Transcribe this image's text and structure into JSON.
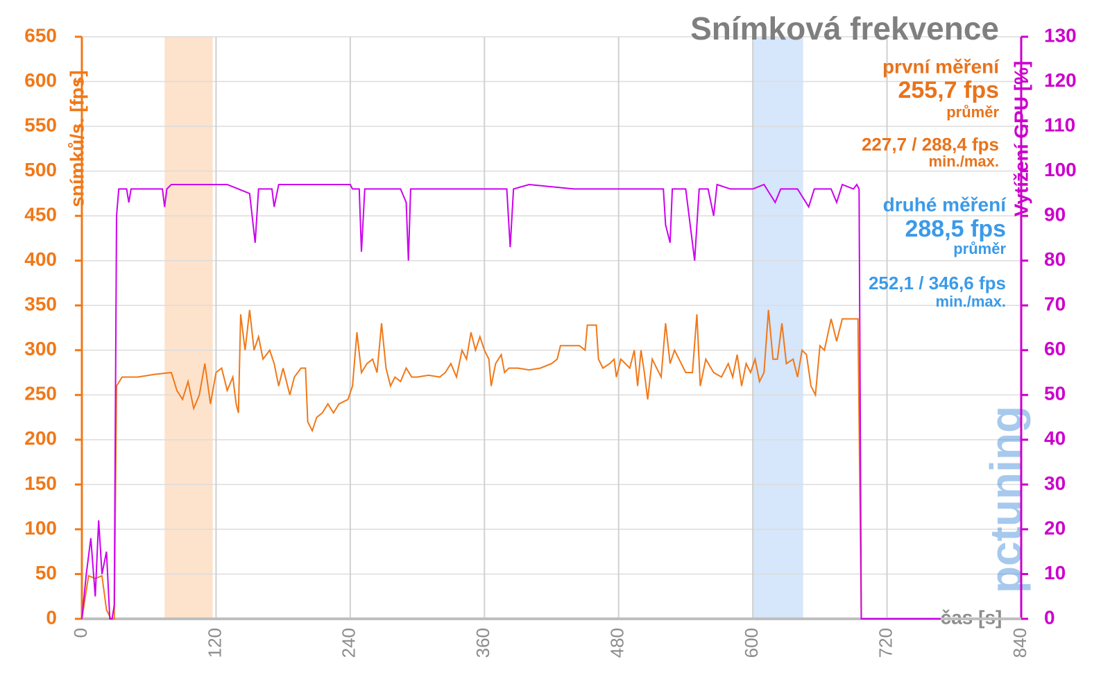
{
  "chart_data": {
    "type": "line",
    "title": "Snímková frekvence",
    "y_label": "snímků/s. [fps]",
    "y2_label": "Vytížení GPU [%]",
    "x_label": "čas [s]",
    "watermark": "pctuning",
    "xlim": [
      0,
      840
    ],
    "xticks": [
      0,
      120,
      240,
      360,
      480,
      600,
      720,
      840
    ],
    "ylim": [
      0,
      650
    ],
    "yticks": [
      0,
      50,
      100,
      150,
      200,
      250,
      300,
      350,
      400,
      450,
      500,
      550,
      600,
      650
    ],
    "y2lim": [
      0,
      130
    ],
    "y2ticks": [
      0,
      10,
      20,
      30,
      40,
      50,
      60,
      70,
      80,
      90,
      100,
      110,
      120,
      130
    ],
    "grid": true,
    "bands": [
      {
        "from": 74,
        "to": 117,
        "color": "#fde2cc"
      },
      {
        "from": 600,
        "to": 645,
        "color": "#d6e6fb"
      }
    ],
    "annotations": [
      {
        "label": "první měření",
        "value": "255,7 fps",
        "note": "průměr",
        "range": "227,7 / 288,4 fps",
        "range_note": "min./max.",
        "color": "#e8731c"
      },
      {
        "label": "druhé měření",
        "value": "288,5 fps",
        "note": "průměr",
        "range": "252,1 / 346,6 fps",
        "range_note": "min./max.",
        "color": "#3b9ae8"
      }
    ],
    "series": [
      {
        "name": "fps",
        "color": "#f07818",
        "axis": "y",
        "x": [
          0,
          6,
          12,
          18,
          22,
          26,
          29,
          31,
          36,
          50,
          65,
          80,
          85,
          90,
          95,
          100,
          105,
          110,
          115,
          120,
          125,
          130,
          135,
          138,
          140,
          142,
          146,
          150,
          154,
          158,
          162,
          168,
          172,
          176,
          180,
          186,
          190,
          196,
          200,
          202,
          206,
          210,
          215,
          220,
          225,
          230,
          238,
          242,
          246,
          250,
          255,
          260,
          264,
          268,
          272,
          276,
          280,
          285,
          290,
          295,
          300,
          310,
          320,
          325,
          330,
          335,
          340,
          344,
          348,
          352,
          356,
          360,
          364,
          366,
          370,
          375,
          378,
          382,
          390,
          400,
          410,
          420,
          425,
          428,
          435,
          445,
          450,
          452,
          460,
          462,
          466,
          472,
          476,
          478,
          482,
          486,
          490,
          494,
          497,
          500,
          503,
          506,
          510,
          514,
          518,
          522,
          526,
          530,
          536,
          540,
          546,
          550,
          553,
          558,
          565,
          572,
          578,
          582,
          586,
          590,
          594,
          598,
          602,
          606,
          610,
          614,
          618,
          622,
          626,
          630,
          636,
          640,
          644,
          648,
          652,
          656,
          660,
          664,
          670,
          675,
          680,
          690,
          694,
          697,
          700
        ],
        "values": [
          0,
          48,
          45,
          48,
          10,
          0,
          0,
          260,
          270,
          270,
          273,
          275,
          255,
          245,
          265,
          235,
          250,
          285,
          240,
          275,
          280,
          255,
          270,
          240,
          230,
          340,
          300,
          345,
          300,
          315,
          290,
          300,
          285,
          260,
          280,
          250,
          270,
          280,
          280,
          220,
          210,
          225,
          230,
          240,
          230,
          240,
          245,
          260,
          320,
          275,
          285,
          290,
          275,
          330,
          280,
          260,
          270,
          265,
          280,
          270,
          270,
          272,
          270,
          275,
          285,
          270,
          300,
          290,
          320,
          300,
          315,
          300,
          290,
          260,
          285,
          295,
          275,
          280,
          280,
          278,
          280,
          285,
          290,
          305,
          305,
          305,
          300,
          328,
          328,
          290,
          280,
          285,
          290,
          270,
          290,
          285,
          280,
          300,
          260,
          300,
          275,
          245,
          290,
          280,
          270,
          330,
          285,
          300,
          285,
          275,
          275,
          340,
          260,
          290,
          275,
          270,
          285,
          270,
          295,
          260,
          285,
          275,
          290,
          265,
          275,
          345,
          290,
          290,
          330,
          285,
          290,
          270,
          300,
          295,
          260,
          250,
          305,
          300,
          335,
          310,
          335,
          335,
          335,
          0,
          0
        ]
      },
      {
        "name": "GPU",
        "color": "#cc00ee",
        "axis": "y2",
        "x": [
          0,
          4,
          8,
          12,
          15,
          18,
          22,
          25,
          27,
          29,
          31,
          33,
          40,
          42,
          44,
          60,
          72,
          74,
          76,
          80,
          100,
          120,
          130,
          140,
          150,
          155,
          158,
          170,
          172,
          176,
          200,
          230,
          240,
          242,
          248,
          250,
          253,
          270,
          285,
          290,
          292,
          294,
          300,
          360,
          380,
          383,
          386,
          400,
          440,
          460,
          500,
          520,
          522,
          526,
          528,
          540,
          548,
          552,
          560,
          565,
          568,
          580,
          600,
          610,
          620,
          625,
          640,
          650,
          655,
          670,
          675,
          680,
          690,
          693,
          695,
          697,
          740,
          760,
          768
        ],
        "values": [
          0,
          10,
          18,
          5,
          22,
          10,
          15,
          0,
          0,
          3,
          90,
          96,
          96,
          93,
          96,
          96,
          96,
          92,
          96,
          97,
          97,
          97,
          97,
          96,
          95,
          84,
          96,
          96,
          92,
          97,
          97,
          97,
          97,
          96,
          96,
          82,
          96,
          96,
          96,
          93,
          80,
          96,
          96,
          96,
          96,
          83,
          96,
          97,
          96,
          96,
          96,
          96,
          88,
          84,
          96,
          96,
          80,
          96,
          96,
          90,
          97,
          96,
          96,
          97,
          93,
          96,
          96,
          92,
          96,
          96,
          93,
          97,
          96,
          97,
          96,
          0,
          0,
          0,
          0
        ]
      }
    ]
  }
}
